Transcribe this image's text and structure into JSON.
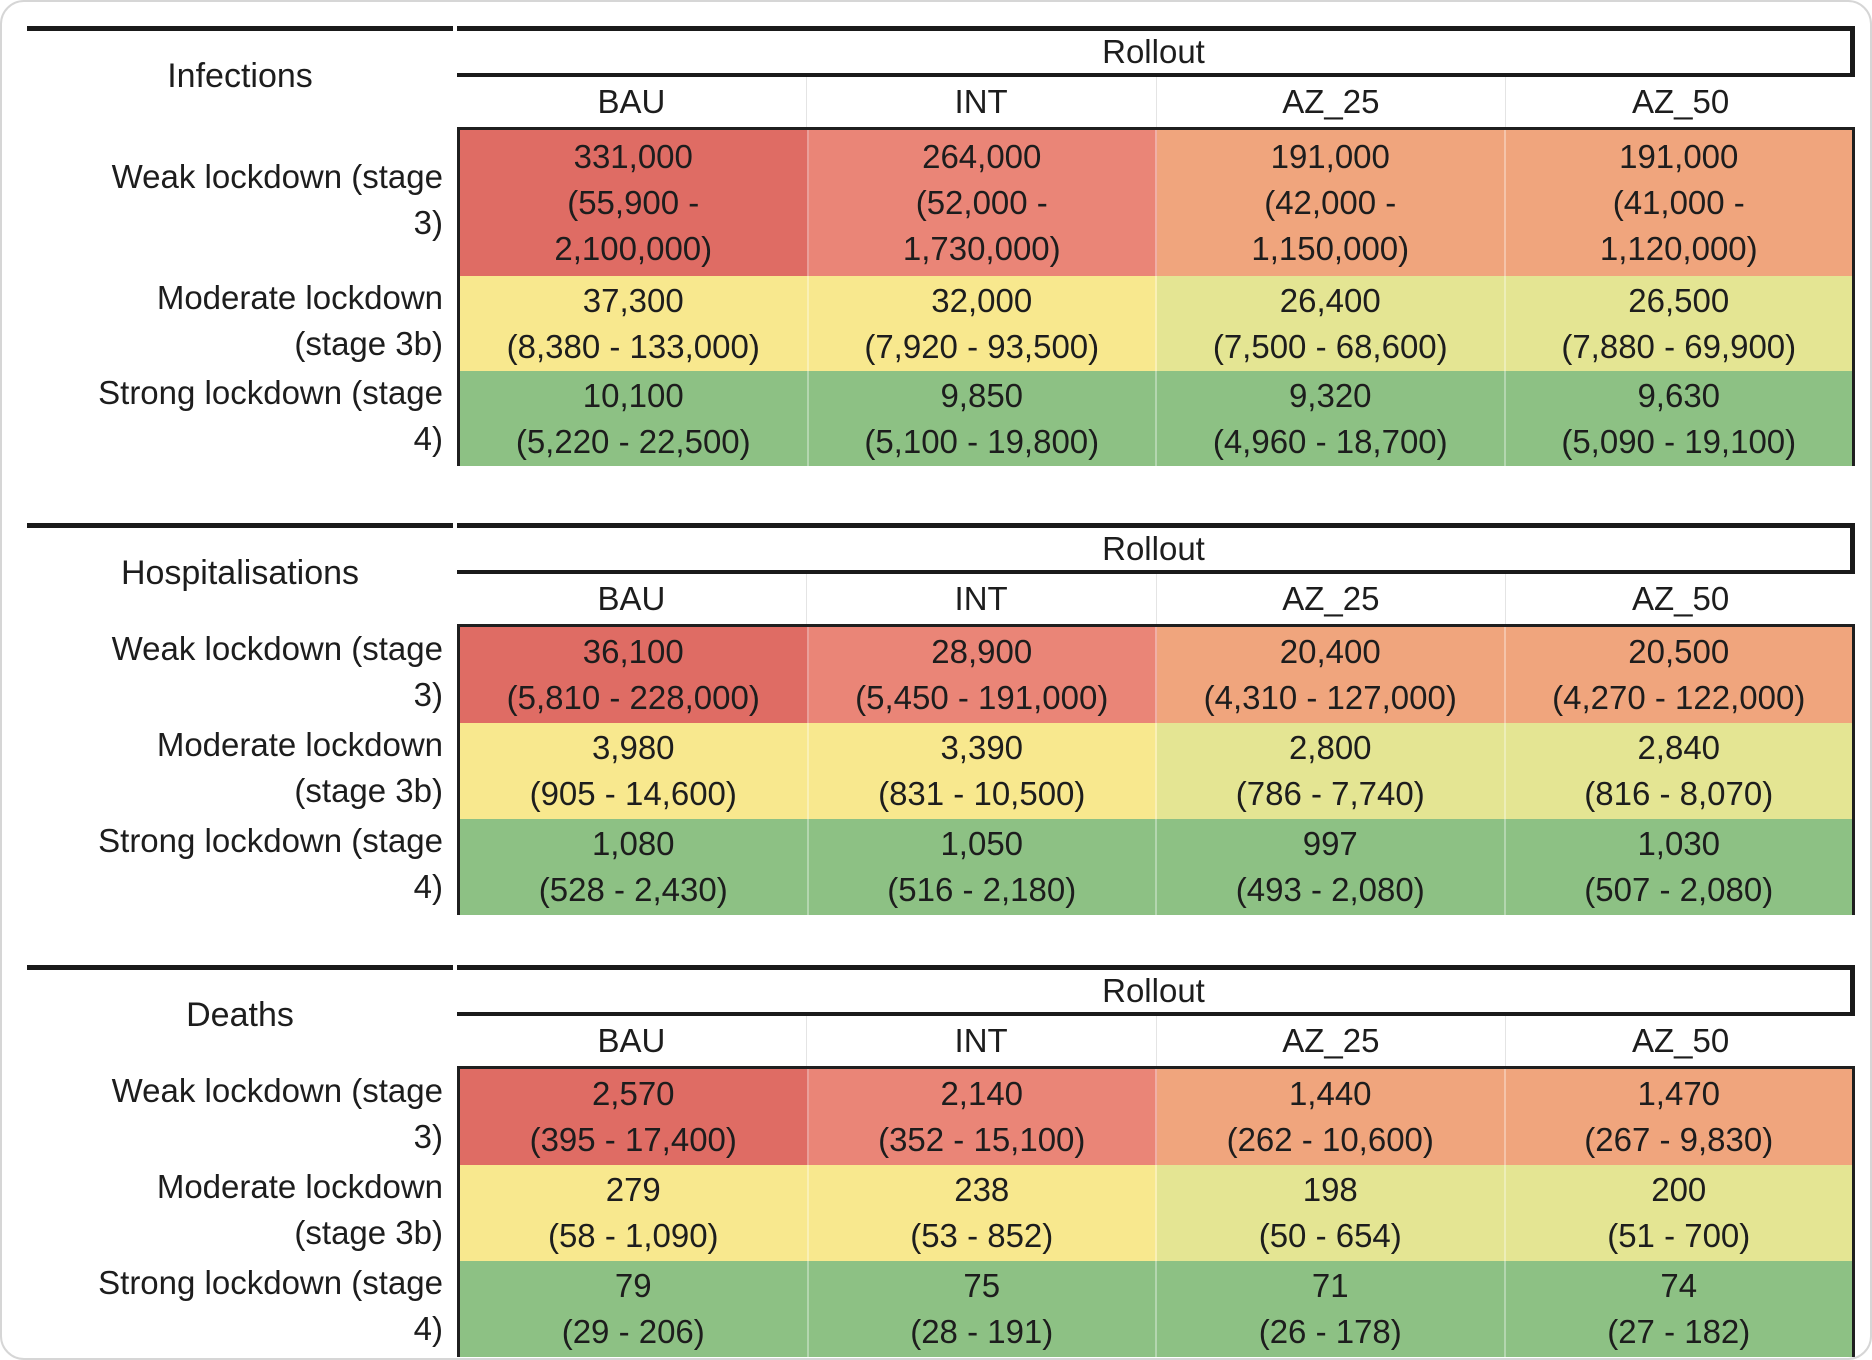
{
  "card": {
    "background": "#ffffff",
    "border_color": "#d6d6d6",
    "rule_color": "#1a1a1a",
    "text_color": "#1d1d1d"
  },
  "palette": {
    "red": "#df6c64",
    "salmon": "#ea8577",
    "orange": "#f0a57d",
    "yellow": "#f8e88e",
    "yellow_green": "#e4e593",
    "green": "#8dc184"
  },
  "chart_data": {
    "type": "table",
    "column_group_label": "Rollout",
    "columns": [
      "BAU",
      "INT",
      "AZ_25",
      "AZ_50"
    ],
    "row_labels": [
      "Weak lockdown (stage 3)",
      "Moderate lockdown (stage 3b)",
      "Strong lockdown (stage 4)"
    ],
    "row_label_display_lines": [
      [
        "Weak lockdown (stage",
        "3)"
      ],
      [
        "Moderate lockdown",
        "(stage 3b)"
      ],
      [
        "Strong lockdown (stage",
        "4)"
      ]
    ],
    "tables": [
      {
        "title": "Infections",
        "rows": [
          {
            "label": "Weak lockdown (stage 3)",
            "cells": [
              {
                "value": "331,000",
                "ci": "(55,900 - 2,100,000)",
                "ci_display_lines": [
                  "(55,900 -",
                  "2,100,000)"
                ],
                "color": "red"
              },
              {
                "value": "264,000",
                "ci": "(52,000 - 1,730,000)",
                "ci_display_lines": [
                  "(52,000 -",
                  "1,730,000)"
                ],
                "color": "salmon"
              },
              {
                "value": "191,000",
                "ci": "(42,000 - 1,150,000)",
                "ci_display_lines": [
                  "(42,000 -",
                  "1,150,000)"
                ],
                "color": "orange"
              },
              {
                "value": "191,000",
                "ci": "(41,000 - 1,120,000)",
                "ci_display_lines": [
                  "(41,000 -",
                  "1,120,000)"
                ],
                "color": "orange"
              }
            ]
          },
          {
            "label": "Moderate lockdown (stage 3b)",
            "cells": [
              {
                "value": "37,300",
                "ci": "(8,380 - 133,000)",
                "color": "yellow"
              },
              {
                "value": "32,000",
                "ci": "(7,920 - 93,500)",
                "color": "yellow"
              },
              {
                "value": "26,400",
                "ci": "(7,500 - 68,600)",
                "color": "yellow_green"
              },
              {
                "value": "26,500",
                "ci": "(7,880 - 69,900)",
                "color": "yellow_green"
              }
            ]
          },
          {
            "label": "Strong lockdown (stage 4)",
            "cells": [
              {
                "value": "10,100",
                "ci": "(5,220 - 22,500)",
                "color": "green"
              },
              {
                "value": "9,850",
                "ci": "(5,100 - 19,800)",
                "color": "green"
              },
              {
                "value": "9,320",
                "ci": "(4,960 - 18,700)",
                "color": "green"
              },
              {
                "value": "9,630",
                "ci": "(5,090 - 19,100)",
                "color": "green"
              }
            ]
          }
        ]
      },
      {
        "title": "Hospitalisations",
        "rows": [
          {
            "label": "Weak lockdown (stage 3)",
            "cells": [
              {
                "value": "36,100",
                "ci": "(5,810 - 228,000)",
                "color": "red"
              },
              {
                "value": "28,900",
                "ci": "(5,450 - 191,000)",
                "color": "salmon"
              },
              {
                "value": "20,400",
                "ci": "(4,310 - 127,000)",
                "color": "orange"
              },
              {
                "value": "20,500",
                "ci": "(4,270 - 122,000)",
                "color": "orange"
              }
            ]
          },
          {
            "label": "Moderate lockdown (stage 3b)",
            "cells": [
              {
                "value": "3,980",
                "ci": "(905 - 14,600)",
                "color": "yellow"
              },
              {
                "value": "3,390",
                "ci": "(831 - 10,500)",
                "color": "yellow"
              },
              {
                "value": "2,800",
                "ci": "(786 - 7,740)",
                "color": "yellow_green"
              },
              {
                "value": "2,840",
                "ci": "(816 - 8,070)",
                "color": "yellow_green"
              }
            ]
          },
          {
            "label": "Strong lockdown (stage 4)",
            "cells": [
              {
                "value": "1,080",
                "ci": "(528 - 2,430)",
                "color": "green"
              },
              {
                "value": "1,050",
                "ci": "(516 - 2,180)",
                "color": "green"
              },
              {
                "value": "997",
                "ci": "(493 - 2,080)",
                "color": "green"
              },
              {
                "value": "1,030",
                "ci": "(507 - 2,080)",
                "color": "green"
              }
            ]
          }
        ]
      },
      {
        "title": "Deaths",
        "rows": [
          {
            "label": "Weak lockdown (stage 3)",
            "cells": [
              {
                "value": "2,570",
                "ci": "(395 - 17,400)",
                "color": "red"
              },
              {
                "value": "2,140",
                "ci": "(352 - 15,100)",
                "color": "salmon"
              },
              {
                "value": "1,440",
                "ci": "(262 - 10,600)",
                "color": "orange"
              },
              {
                "value": "1,470",
                "ci": "(267 - 9,830)",
                "color": "orange"
              }
            ]
          },
          {
            "label": "Moderate lockdown (stage 3b)",
            "cells": [
              {
                "value": "279",
                "ci": "(58 - 1,090)",
                "color": "yellow"
              },
              {
                "value": "238",
                "ci": "(53 - 852)",
                "color": "yellow"
              },
              {
                "value": "198",
                "ci": "(50 - 654)",
                "color": "yellow_green"
              },
              {
                "value": "200",
                "ci": "(51 - 700)",
                "color": "yellow_green"
              }
            ]
          },
          {
            "label": "Strong lockdown (stage 4)",
            "cells": [
              {
                "value": "79",
                "ci": "(29 - 206)",
                "color": "green"
              },
              {
                "value": "75",
                "ci": "(28 - 191)",
                "color": "green"
              },
              {
                "value": "71",
                "ci": "(26 - 178)",
                "color": "green"
              },
              {
                "value": "74",
                "ci": "(27 - 182)",
                "color": "green"
              }
            ]
          }
        ]
      }
    ]
  }
}
